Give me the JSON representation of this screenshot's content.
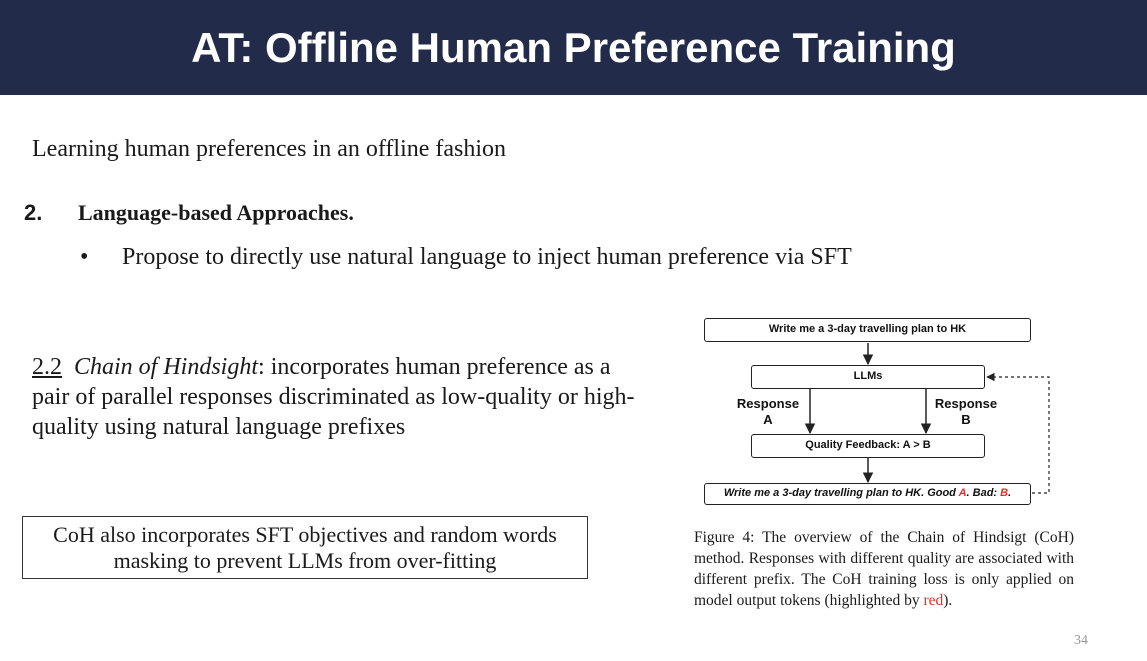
{
  "slide": {
    "title": "AT: Offline Human Preference Training",
    "subtitle": "Learning human preferences in an offline fashion",
    "section": {
      "number": "2.",
      "title": "Language-based Approaches.",
      "bullet_symbol": "•",
      "bullet": "Propose to directly use natural language to inject human preference via SFT"
    },
    "coh": {
      "number": "2.2",
      "name": "Chain of Hindsight",
      "description": ": incorporates human preference as a pair of parallel responses discriminated as low-quality or high-quality using natural language prefixes"
    },
    "note": "CoH also incorporates SFT objectives and random words masking to prevent LLMs from over-fitting",
    "page_number": "34"
  },
  "diagram": {
    "prompt_box": "Write me a 3-day travelling plan to HK",
    "llm_box": "LLMs",
    "response_a": {
      "line1": "Response",
      "line2": "A"
    },
    "response_b": {
      "line1": "Response",
      "line2": "B"
    },
    "feedback_box": "Quality Feedback: A > B",
    "output": {
      "prefix": "Write me a 3-day travelling plan to HK. Good ",
      "a": "A",
      "mid": ". Bad: ",
      "b": "B",
      "end": "."
    },
    "highlight_color": "#e0302b"
  },
  "caption": {
    "text": "Figure 4: The overview of the Chain of Hindsigt (CoH) method. Responses with different quality are associated with different prefix.  The CoH training loss is only applied on model output tokens (highlighted by ",
    "red_word": "red",
    "end": ")."
  }
}
